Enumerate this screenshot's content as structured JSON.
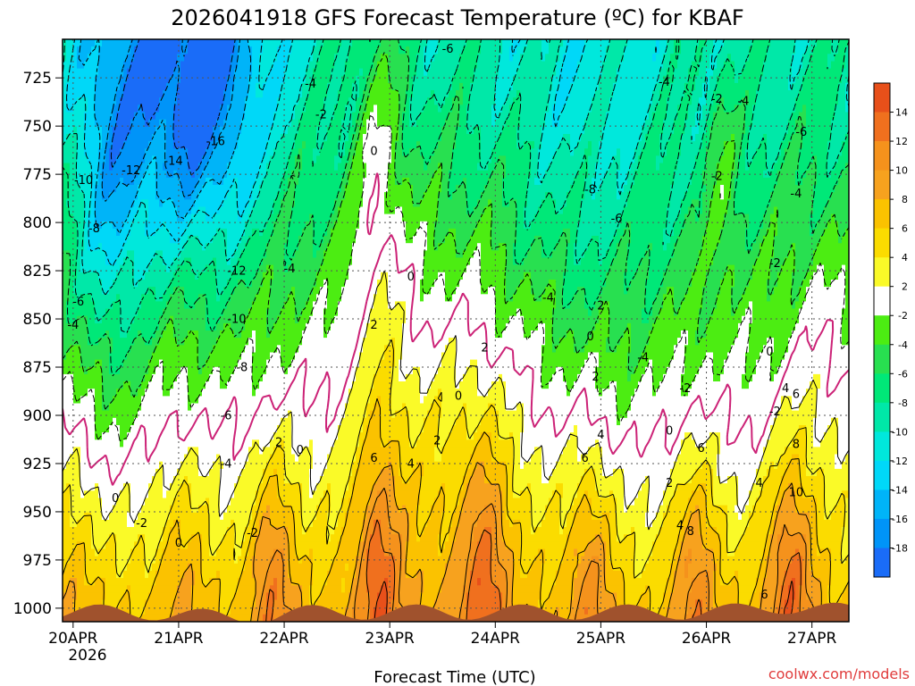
{
  "chart_data": {
    "type": "heatmap",
    "title": "2026041918 GFS Forecast Temperature (ºC) for KBAF",
    "xlabel": "Forecast Time (UTC)",
    "ylabel": "",
    "x_ticks": [
      "20APR",
      "21APR",
      "22APR",
      "23APR",
      "24APR",
      "25APR",
      "26APR",
      "27APR"
    ],
    "x_year_label": "2026",
    "x_range_days": [
      -0.1,
      7.35
    ],
    "y_ticks": [
      725,
      750,
      775,
      800,
      825,
      850,
      875,
      900,
      925,
      950,
      975,
      1000
    ],
    "y_units": "hPa",
    "y_range": [
      705,
      1007
    ],
    "y_inverted": true,
    "grid": true,
    "colorbar": {
      "position": "right",
      "ticks": [
        "14",
        "12",
        "10",
        "8",
        "6",
        "4",
        "2",
        "-2",
        "-4",
        "-6",
        "-8",
        "-10",
        "-12",
        "-14",
        "-16",
        "-18"
      ],
      "colors": [
        "#e8501a",
        "#f0701e",
        "#f5921c",
        "#f7a21e",
        "#fbc200",
        "#fbdc00",
        "#fafa28",
        "#ffffff",
        "#4ced12",
        "#28e050",
        "#00e878",
        "#00e8a8",
        "#00e8dc",
        "#00d8f8",
        "#00b4f8",
        "#0094f8",
        "#1a6cf8"
      ]
    },
    "contour_labels": [
      {
        "t": 0.05,
        "p": 843,
        "v": "-6"
      },
      {
        "t": 0.0,
        "p": 855,
        "v": "-4"
      },
      {
        "t": 0.2,
        "p": 805,
        "v": "-8"
      },
      {
        "t": 0.1,
        "p": 780,
        "v": "-10"
      },
      {
        "t": 0.55,
        "p": 775,
        "v": "-12"
      },
      {
        "t": 0.95,
        "p": 770,
        "v": "-14"
      },
      {
        "t": 1.35,
        "p": 760,
        "v": "-16"
      },
      {
        "t": 1.55,
        "p": 827,
        "v": "-12"
      },
      {
        "t": 1.55,
        "p": 852,
        "v": "-10"
      },
      {
        "t": 1.6,
        "p": 877,
        "v": "-8"
      },
      {
        "t": 1.45,
        "p": 902,
        "v": "-6"
      },
      {
        "t": 1.45,
        "p": 927,
        "v": "-4"
      },
      {
        "t": 1.7,
        "p": 963,
        "v": "-2"
      },
      {
        "t": 0.4,
        "p": 945,
        "v": "0"
      },
      {
        "t": 0.65,
        "p": 958,
        "v": "-2"
      },
      {
        "t": 1.0,
        "p": 968,
        "v": "0"
      },
      {
        "t": 2.25,
        "p": 730,
        "v": "-4"
      },
      {
        "t": 2.35,
        "p": 746,
        "v": "-2"
      },
      {
        "t": 2.05,
        "p": 826,
        "v": "-4"
      },
      {
        "t": 1.95,
        "p": 916,
        "v": "2"
      },
      {
        "t": 2.15,
        "p": 920,
        "v": "0"
      },
      {
        "t": 3.55,
        "p": 712,
        "v": "-6"
      },
      {
        "t": 2.85,
        "p": 765,
        "v": "0"
      },
      {
        "t": 3.2,
        "p": 830,
        "v": "0"
      },
      {
        "t": 2.85,
        "p": 855,
        "v": "2"
      },
      {
        "t": 2.85,
        "p": 924,
        "v": "6"
      },
      {
        "t": 3.2,
        "p": 927,
        "v": "4"
      },
      {
        "t": 3.45,
        "p": 915,
        "v": "2"
      },
      {
        "t": 3.65,
        "p": 892,
        "v": "0"
      },
      {
        "t": 3.9,
        "p": 867,
        "v": "2"
      },
      {
        "t": 4.5,
        "p": 841,
        "v": "-4"
      },
      {
        "t": 4.9,
        "p": 785,
        "v": "-8"
      },
      {
        "t": 5.15,
        "p": 800,
        "v": "-6"
      },
      {
        "t": 5.0,
        "p": 845,
        "v": "2"
      },
      {
        "t": 4.9,
        "p": 861,
        "v": "0"
      },
      {
        "t": 4.95,
        "p": 882,
        "v": "2"
      },
      {
        "t": 5.0,
        "p": 912,
        "v": "4"
      },
      {
        "t": 4.85,
        "p": 924,
        "v": "6"
      },
      {
        "t": 5.4,
        "p": 872,
        "v": "-4"
      },
      {
        "t": 5.6,
        "p": 729,
        "v": "-4"
      },
      {
        "t": 6.1,
        "p": 738,
        "v": "-2"
      },
      {
        "t": 6.35,
        "p": 739,
        "v": "-4"
      },
      {
        "t": 6.1,
        "p": 778,
        "v": "-2"
      },
      {
        "t": 5.8,
        "p": 888,
        "v": "-2"
      },
      {
        "t": 5.65,
        "p": 910,
        "v": "0"
      },
      {
        "t": 5.65,
        "p": 937,
        "v": "2"
      },
      {
        "t": 5.95,
        "p": 919,
        "v": "6"
      },
      {
        "t": 5.85,
        "p": 962,
        "v": "8"
      },
      {
        "t": 5.75,
        "p": 959,
        "v": "4"
      },
      {
        "t": 6.5,
        "p": 937,
        "v": "4"
      },
      {
        "t": 6.65,
        "p": 823,
        "v": "-2"
      },
      {
        "t": 6.9,
        "p": 755,
        "v": "-6"
      },
      {
        "t": 6.85,
        "p": 787,
        "v": "-4"
      },
      {
        "t": 6.6,
        "p": 869,
        "v": "0"
      },
      {
        "t": 6.65,
        "p": 900,
        "v": "-2"
      },
      {
        "t": 6.75,
        "p": 888,
        "v": "4"
      },
      {
        "t": 6.85,
        "p": 891,
        "v": "6"
      },
      {
        "t": 6.85,
        "p": 917,
        "v": "8"
      },
      {
        "t": 6.85,
        "p": 942,
        "v": "10"
      },
      {
        "t": 6.55,
        "p": 995,
        "v": "6"
      }
    ]
  },
  "credit": "coolwx.com/models",
  "colors": {
    "ground": "#a0522d",
    "contour_zero": "#cc2277",
    "contour": "#000000",
    "grid": "#555555"
  }
}
